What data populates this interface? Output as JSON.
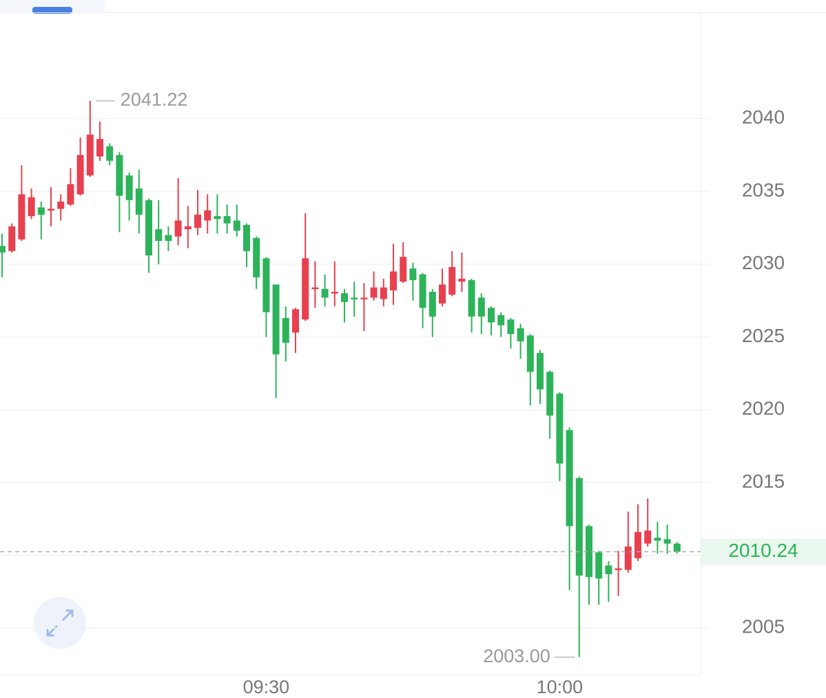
{
  "chart_data": {
    "type": "candlestick",
    "categories": [
      null,
      null,
      null,
      null,
      null,
      null,
      null,
      null,
      null,
      null,
      null,
      null,
      null,
      null,
      null,
      null,
      null,
      null,
      null,
      null,
      null,
      null,
      null,
      null,
      null,
      null,
      null,
      "09:30",
      null,
      null,
      null,
      null,
      null,
      null,
      null,
      null,
      null,
      null,
      null,
      null,
      null,
      null,
      null,
      null,
      null,
      null,
      null,
      null,
      null,
      null,
      null,
      null,
      null,
      null,
      null,
      null,
      null,
      "10:00",
      null,
      null,
      null,
      null,
      null,
      null,
      null,
      null,
      null,
      null,
      null,
      null
    ],
    "open": [
      2031.25,
      2030.9,
      2031.7,
      2033.3,
      2033.9,
      2033.7,
      2033.8,
      2034.1,
      2034.8,
      2036.1,
      2037.4,
      2038.1,
      2037.5,
      2036.1,
      2035.2,
      2034.4,
      2032.4,
      2032.0,
      2031.9,
      2032.4,
      2032.5,
      2033.0,
      2033.3,
      2033.3,
      2033.0,
      2032.7,
      2031.8,
      2030.4,
      2028.6,
      2026.3,
      2025.3,
      2026.2,
      2028.3,
      2028.3,
      2028.0,
      2028.0,
      2027.7,
      2027.6,
      2027.7,
      2027.6,
      2028.2,
      2028.8,
      2029.7,
      2029.3,
      2028.1,
      2027.3,
      2027.9,
      2028.8,
      2028.9,
      2027.7,
      2027.0,
      2026.5,
      2026.2,
      2025.6,
      2025.1,
      2023.9,
      2022.6,
      2021.1,
      2018.6,
      2015.3,
      2012.0,
      2010.2,
      2009.3,
      2009.0,
      2009.0,
      2009.8,
      2010.8,
      2011.2,
      2011.1,
      2010.8
    ],
    "high": [
      2032.1,
      2032.8,
      2036.8,
      2035.2,
      2034.3,
      2035.3,
      2034.8,
      2036.6,
      2038.7,
      2041.22,
      2039.8,
      2038.3,
      2037.7,
      2036.3,
      2036.5,
      2034.5,
      2034.4,
      2032.6,
      2035.9,
      2034.0,
      2035.1,
      2034.8,
      2034.8,
      2034.1,
      2034.1,
      2032.8,
      2031.9,
      2030.5,
      2028.6,
      2027.1,
      2027.0,
      2033.5,
      2030.2,
      2029.3,
      2030.2,
      2028.3,
      2028.8,
      2028.7,
      2029.5,
      2029.0,
      2031.4,
      2031.5,
      2030.1,
      2029.4,
      2028.3,
      2029.7,
      2030.9,
      2030.8,
      2029.0,
      2028.0,
      2027.1,
      2026.7,
      2026.3,
      2025.9,
      2025.2,
      2024.1,
      2022.7,
      2021.2,
      2018.8,
      2015.4,
      2012.1,
      2010.3,
      2009.6,
      2010.3,
      2013.0,
      2013.5,
      2013.9,
      2012.3,
      2012.1,
      2010.9
    ],
    "low": [
      2029.1,
      2030.8,
      2031.6,
      2033.1,
      2031.7,
      2032.6,
      2033.0,
      2034.0,
      2034.7,
      2036.0,
      2037.1,
      2036.8,
      2032.2,
      2033.0,
      2032.1,
      2029.4,
      2030.0,
      2030.9,
      2031.3,
      2031.1,
      2032.0,
      2032.1,
      2032.1,
      2032.1,
      2031.9,
      2029.8,
      2028.3,
      2025.0,
      2020.8,
      2023.3,
      2023.9,
      2026.1,
      2027.0,
      2027.1,
      2027.1,
      2026.0,
      2026.4,
      2025.4,
      2027.5,
      2027.1,
      2027.2,
      2028.7,
      2027.5,
      2025.6,
      2025.0,
      2027.1,
      2027.8,
      2028.1,
      2025.3,
      2025.2,
      2025.1,
      2025.0,
      2024.2,
      2023.5,
      2020.3,
      2020.4,
      2018.0,
      2015.1,
      2007.6,
      2003.0,
      2006.6,
      2006.6,
      2006.8,
      2007.2,
      2008.8,
      2009.6,
      2010.6,
      2010.1,
      2010.1,
      2010.1
    ],
    "close": [
      2030.8,
      2032.6,
      2034.8,
      2034.6,
      2033.4,
      2033.8,
      2034.3,
      2035.5,
      2037.5,
      2038.9,
      2038.6,
      2037.1,
      2034.7,
      2034.4,
      2033.4,
      2030.6,
      2031.6,
      2031.6,
      2033.0,
      2032.6,
      2033.4,
      2033.7,
      2033.1,
      2032.8,
      2032.3,
      2030.9,
      2029.1,
      2026.7,
      2023.8,
      2024.6,
      2026.9,
      2030.4,
      2028.4,
      2027.7,
      2028.1,
      2027.4,
      2027.6,
      2027.7,
      2028.4,
      2028.4,
      2029.5,
      2030.5,
      2028.9,
      2027.0,
      2026.4,
      2028.6,
      2029.8,
      2029.0,
      2026.4,
      2026.4,
      2026.0,
      2025.8,
      2025.2,
      2024.7,
      2022.6,
      2021.4,
      2019.6,
      2016.3,
      2012.0,
      2008.6,
      2008.5,
      2008.4,
      2008.7,
      2009.1,
      2010.6,
      2011.6,
      2011.7,
      2011.0,
      2010.8,
      2010.24
    ],
    "up_color": "#e8404f",
    "down_color": "#2db35a",
    "ylim": [
      2001.8,
      2047.3
    ],
    "yticks": [
      2005,
      2010,
      2015,
      2020,
      2025,
      2030,
      2035,
      2040
    ],
    "high_marker": 2041.22,
    "low_marker": {
      "value": 2003,
      "label": "2003.00"
    },
    "last_price": 2010.24,
    "grid": true
  }
}
